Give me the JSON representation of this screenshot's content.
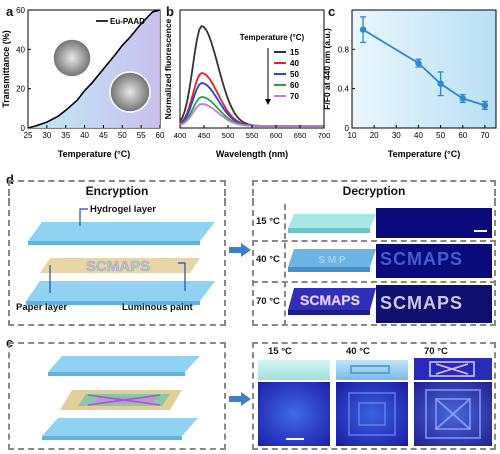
{
  "panels": {
    "a": "a",
    "b": "b",
    "c": "c",
    "d": "d",
    "e": "e"
  },
  "colors": {
    "hydrogel": "#7ec8ee",
    "dark_blue": "#0d0d86",
    "glow": "#4a7bff",
    "paper": "#e8d6a8"
  },
  "chart_data": [
    {
      "type": "line",
      "panel": "a",
      "xlabel": "Temperature (°C)",
      "ylabel": "Transmittance (%)",
      "xlim": [
        25,
        60
      ],
      "ylim": [
        0,
        60
      ],
      "xticks": [
        25,
        30,
        35,
        40,
        45,
        50,
        55,
        60
      ],
      "yticks": [
        0,
        20,
        40,
        60
      ],
      "legend": "Eu-PAAD",
      "series": [
        {
          "name": "Eu-PAAD",
          "x": [
            25,
            27,
            30,
            33,
            35,
            38,
            40,
            42,
            45,
            48,
            50,
            52,
            55,
            57,
            58,
            60
          ],
          "y": [
            0,
            1,
            3,
            6,
            9,
            14,
            19,
            23,
            30,
            37,
            42,
            46,
            53,
            57,
            59,
            60
          ]
        }
      ]
    },
    {
      "type": "line",
      "panel": "b",
      "xlabel": "Wavelength (nm)",
      "ylabel": "Normalized fluorescence",
      "xlim": [
        400,
        700
      ],
      "xticks": [
        400,
        450,
        500,
        550,
        600,
        650,
        700
      ],
      "legend_title": "Temperature (°C)",
      "series": [
        {
          "name": "15",
          "color": "#333333",
          "peak": 1.0
        },
        {
          "name": "40",
          "color": "#e8202a",
          "peak": 0.53
        },
        {
          "name": "50",
          "color": "#1e46d8",
          "peak": 0.43
        },
        {
          "name": "60",
          "color": "#23a34a",
          "peak": 0.29
        },
        {
          "name": "70",
          "color": "#c777d9",
          "peak": 0.22
        }
      ]
    },
    {
      "type": "scatter",
      "panel": "c",
      "xlabel": "Temperature (°C)",
      "ylabel": "F/F0 at 440 nm (a.u.)",
      "xlim": [
        10,
        75
      ],
      "ylim": [
        0,
        1.2
      ],
      "xticks": [
        10,
        20,
        30,
        40,
        50,
        60,
        70
      ],
      "yticks": [
        0,
        0.4,
        0.8
      ],
      "x": [
        15,
        40,
        50,
        60,
        70
      ],
      "y": [
        1.0,
        0.66,
        0.45,
        0.3,
        0.23
      ],
      "err": [
        0.13,
        0.04,
        0.12,
        0.04,
        0.04
      ]
    }
  ],
  "d": {
    "encryption_title": "Encryption",
    "decryption_title": "Decryption",
    "hydrogel_layer": "Hydrogel layer",
    "paper_layer": "Paper layer",
    "luminous_paint": "Luminous paint",
    "paint_text": "SCMAPS",
    "partial_text": "S  M  P",
    "temps": [
      "15 °C",
      "40 °C",
      "70 °C"
    ]
  },
  "e": {
    "temps": [
      "15 °C",
      "40 °C",
      "70 °C"
    ]
  }
}
